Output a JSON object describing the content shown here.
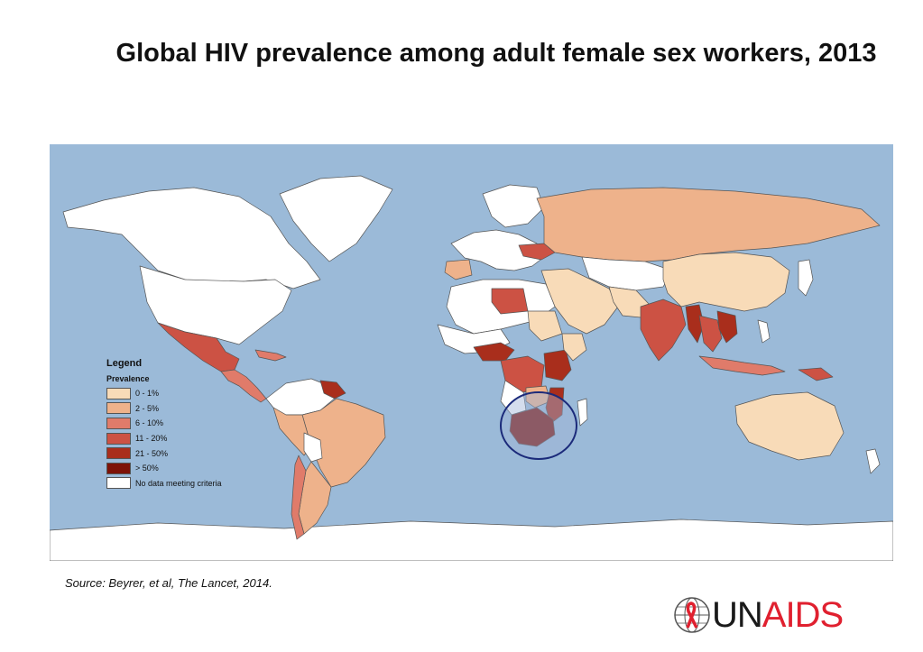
{
  "title": "Global HIV prevalence among adult female sex workers, 2013",
  "legend": {
    "heading": "Legend",
    "subheading": "Prevalence",
    "items": [
      {
        "label": "0 - 1%",
        "color": "#f8dbb8"
      },
      {
        "label": "2 - 5%",
        "color": "#eeb28b"
      },
      {
        "label": "6 - 10%",
        "color": "#e07b6a"
      },
      {
        "label": "11 - 20%",
        "color": "#cc5244"
      },
      {
        "label": "21 - 50%",
        "color": "#a92e1c"
      },
      {
        "label": "> 50%",
        "color": "#7d1208"
      },
      {
        "label": "No data meeting criteria",
        "color": "#ffffff"
      }
    ]
  },
  "map": {
    "ocean_color": "#9bbad8",
    "highlight": "Southern Africa circled",
    "highlight_color": "#1b2a7a"
  },
  "source": "Source: Beyrer, et al, The Lancet, 2014.",
  "logo": {
    "part1": "UN",
    "part2": "AIDS",
    "icon": "red-ribbon-globe-icon"
  }
}
